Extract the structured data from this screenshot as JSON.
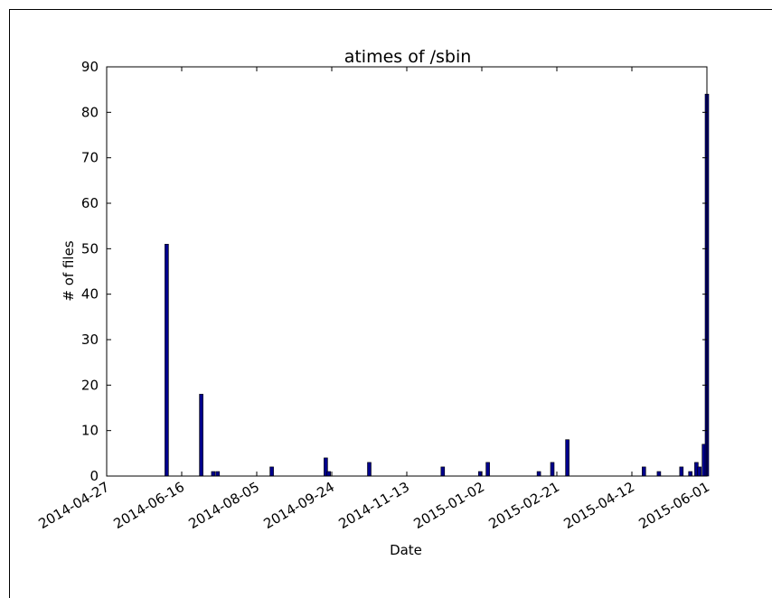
{
  "chart_data": {
    "type": "bar",
    "title": "atimes of /sbin",
    "xlabel": "Date",
    "ylabel": "# of files",
    "xlim": [
      "2014-04-27",
      "2015-06-01"
    ],
    "ylim": [
      0,
      90
    ],
    "xticks": [
      "2014-04-27",
      "2014-06-16",
      "2014-08-05",
      "2014-09-24",
      "2014-11-13",
      "2015-01-02",
      "2015-02-21",
      "2015-04-12",
      "2015-06-01"
    ],
    "yticks": [
      0,
      10,
      20,
      30,
      40,
      50,
      60,
      70,
      80,
      90
    ],
    "bar_color": "#00008b",
    "grid": false,
    "series": [
      {
        "x": [
          "2014-06-06",
          "2014-06-29",
          "2014-07-07",
          "2014-07-10",
          "2014-08-15",
          "2014-09-20",
          "2014-09-22",
          "2014-10-19",
          "2014-12-07",
          "2015-01-01",
          "2015-01-06",
          "2015-02-09",
          "2015-02-18",
          "2015-02-28",
          "2015-04-20",
          "2015-04-30",
          "2015-05-15",
          "2015-05-21",
          "2015-05-25",
          "2015-05-27",
          "2015-05-30",
          "2015-06-01"
        ],
        "values": [
          51,
          18,
          1,
          1,
          2,
          4,
          1,
          3,
          2,
          1,
          3,
          1,
          3,
          8,
          2,
          1,
          2,
          1,
          3,
          2,
          7,
          84
        ]
      }
    ]
  }
}
